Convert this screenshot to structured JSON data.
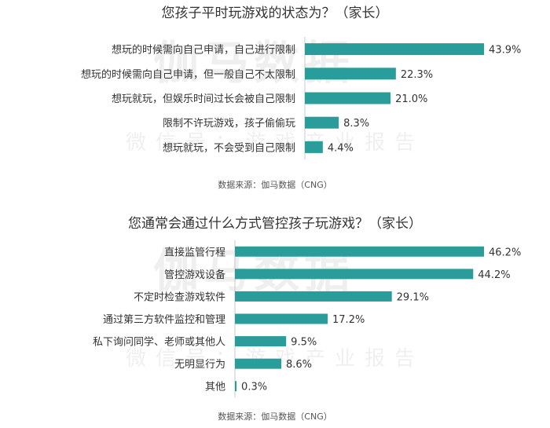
{
  "colors": {
    "bar": "#2a9d9b",
    "axis": "#c8c8c8"
  },
  "watermark": {
    "big": "伽马数据",
    "small": "微信号：游戏产业报告"
  },
  "chart_data": [
    {
      "type": "bar",
      "orientation": "horizontal",
      "title": "您孩子平时玩游戏的状态为？（家长）",
      "categories": [
        "想玩的时候需向自己申请，自己进行限制",
        "想玩的时候需向自己申请，但一般自己不太限制",
        "想玩就玩，但娱乐时间过长会被自己限制",
        "限制不许玩游戏，孩子偷偷玩",
        "想玩就玩，不会受到自己限制"
      ],
      "values": [
        43.9,
        22.3,
        21.0,
        8.3,
        4.4
      ],
      "value_labels": [
        "43.9%",
        "22.3%",
        "21.0%",
        "8.3%",
        "4.4%"
      ],
      "xlim": [
        0,
        46.2
      ],
      "source": "数据来源：伽马数据（CNG）"
    },
    {
      "type": "bar",
      "orientation": "horizontal",
      "title": "您通常会通过什么方式管控孩子玩游戏？（家长）",
      "categories": [
        "直接监管行程",
        "管控游戏设备",
        "不定时检查游戏软件",
        "通过第三方软件监控和管理",
        "私下询问同学、老师或其他人",
        "无明显行为",
        "其他"
      ],
      "values": [
        46.2,
        44.2,
        29.1,
        17.2,
        9.5,
        8.6,
        0.3
      ],
      "value_labels": [
        "46.2%",
        "44.2%",
        "29.1%",
        "17.2%",
        "9.5%",
        "8.6%",
        "0.3%"
      ],
      "xlim": [
        0,
        46.2
      ],
      "source": "数据来源：伽马数据（CNG）"
    }
  ]
}
